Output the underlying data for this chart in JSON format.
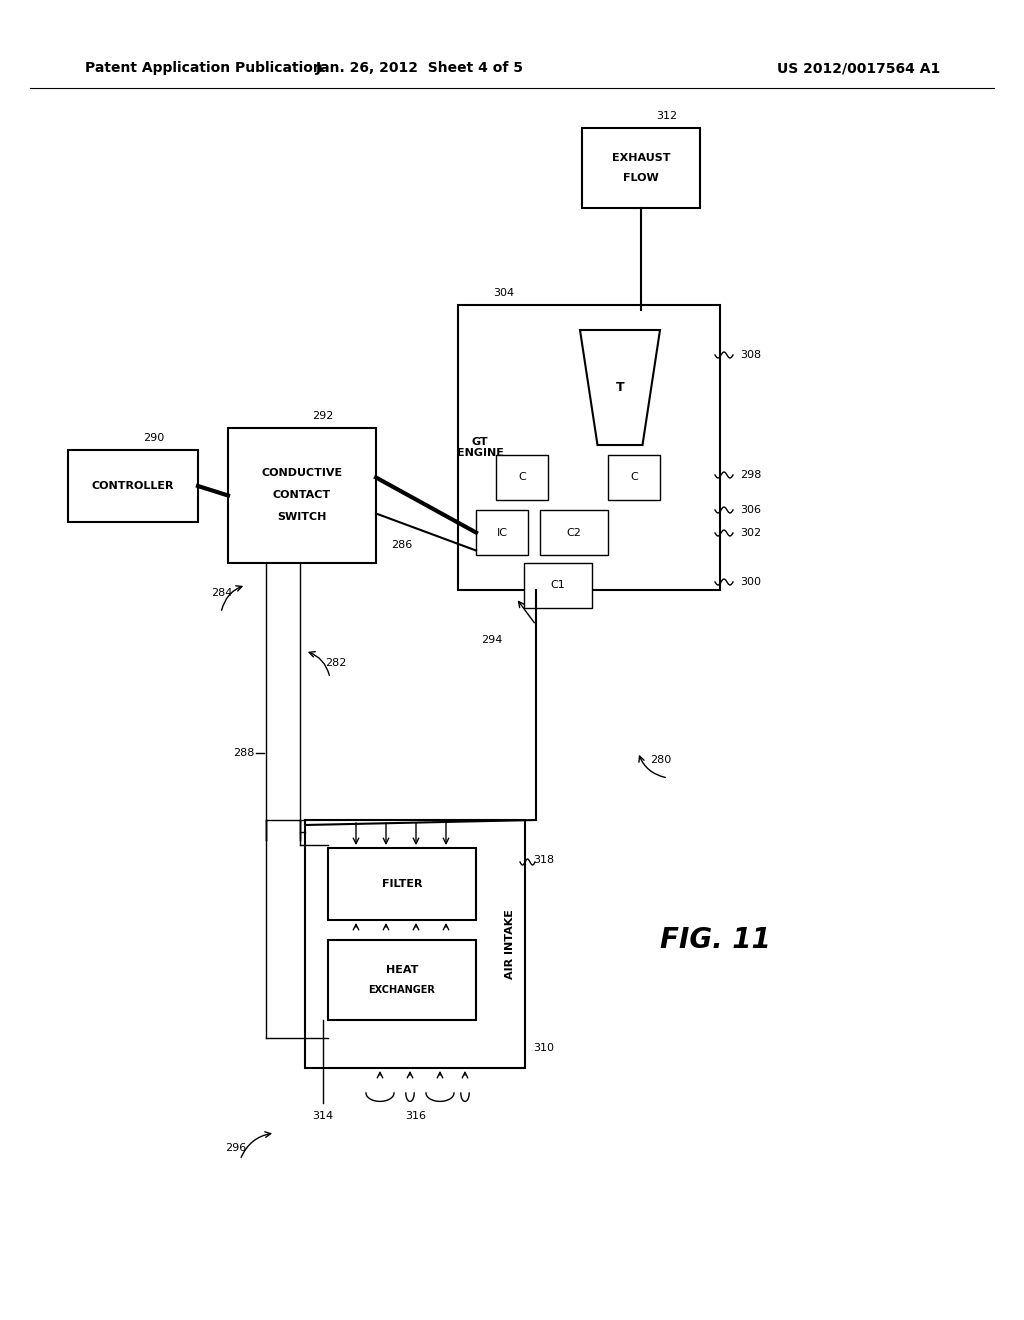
{
  "header_left": "Patent Application Publication",
  "header_mid": "Jan. 26, 2012  Sheet 4 of 5",
  "header_right": "US 2012/0017564 A1",
  "fig_label": "FIG. 11",
  "bg_color": "#ffffff",
  "line_color": "#000000",
  "font_size_header": 10,
  "font_size_ref": 8,
  "font_size_box": 8,
  "font_size_fig": 20,
  "lw_thin": 1.0,
  "lw_med": 1.5,
  "lw_thick": 3.0
}
